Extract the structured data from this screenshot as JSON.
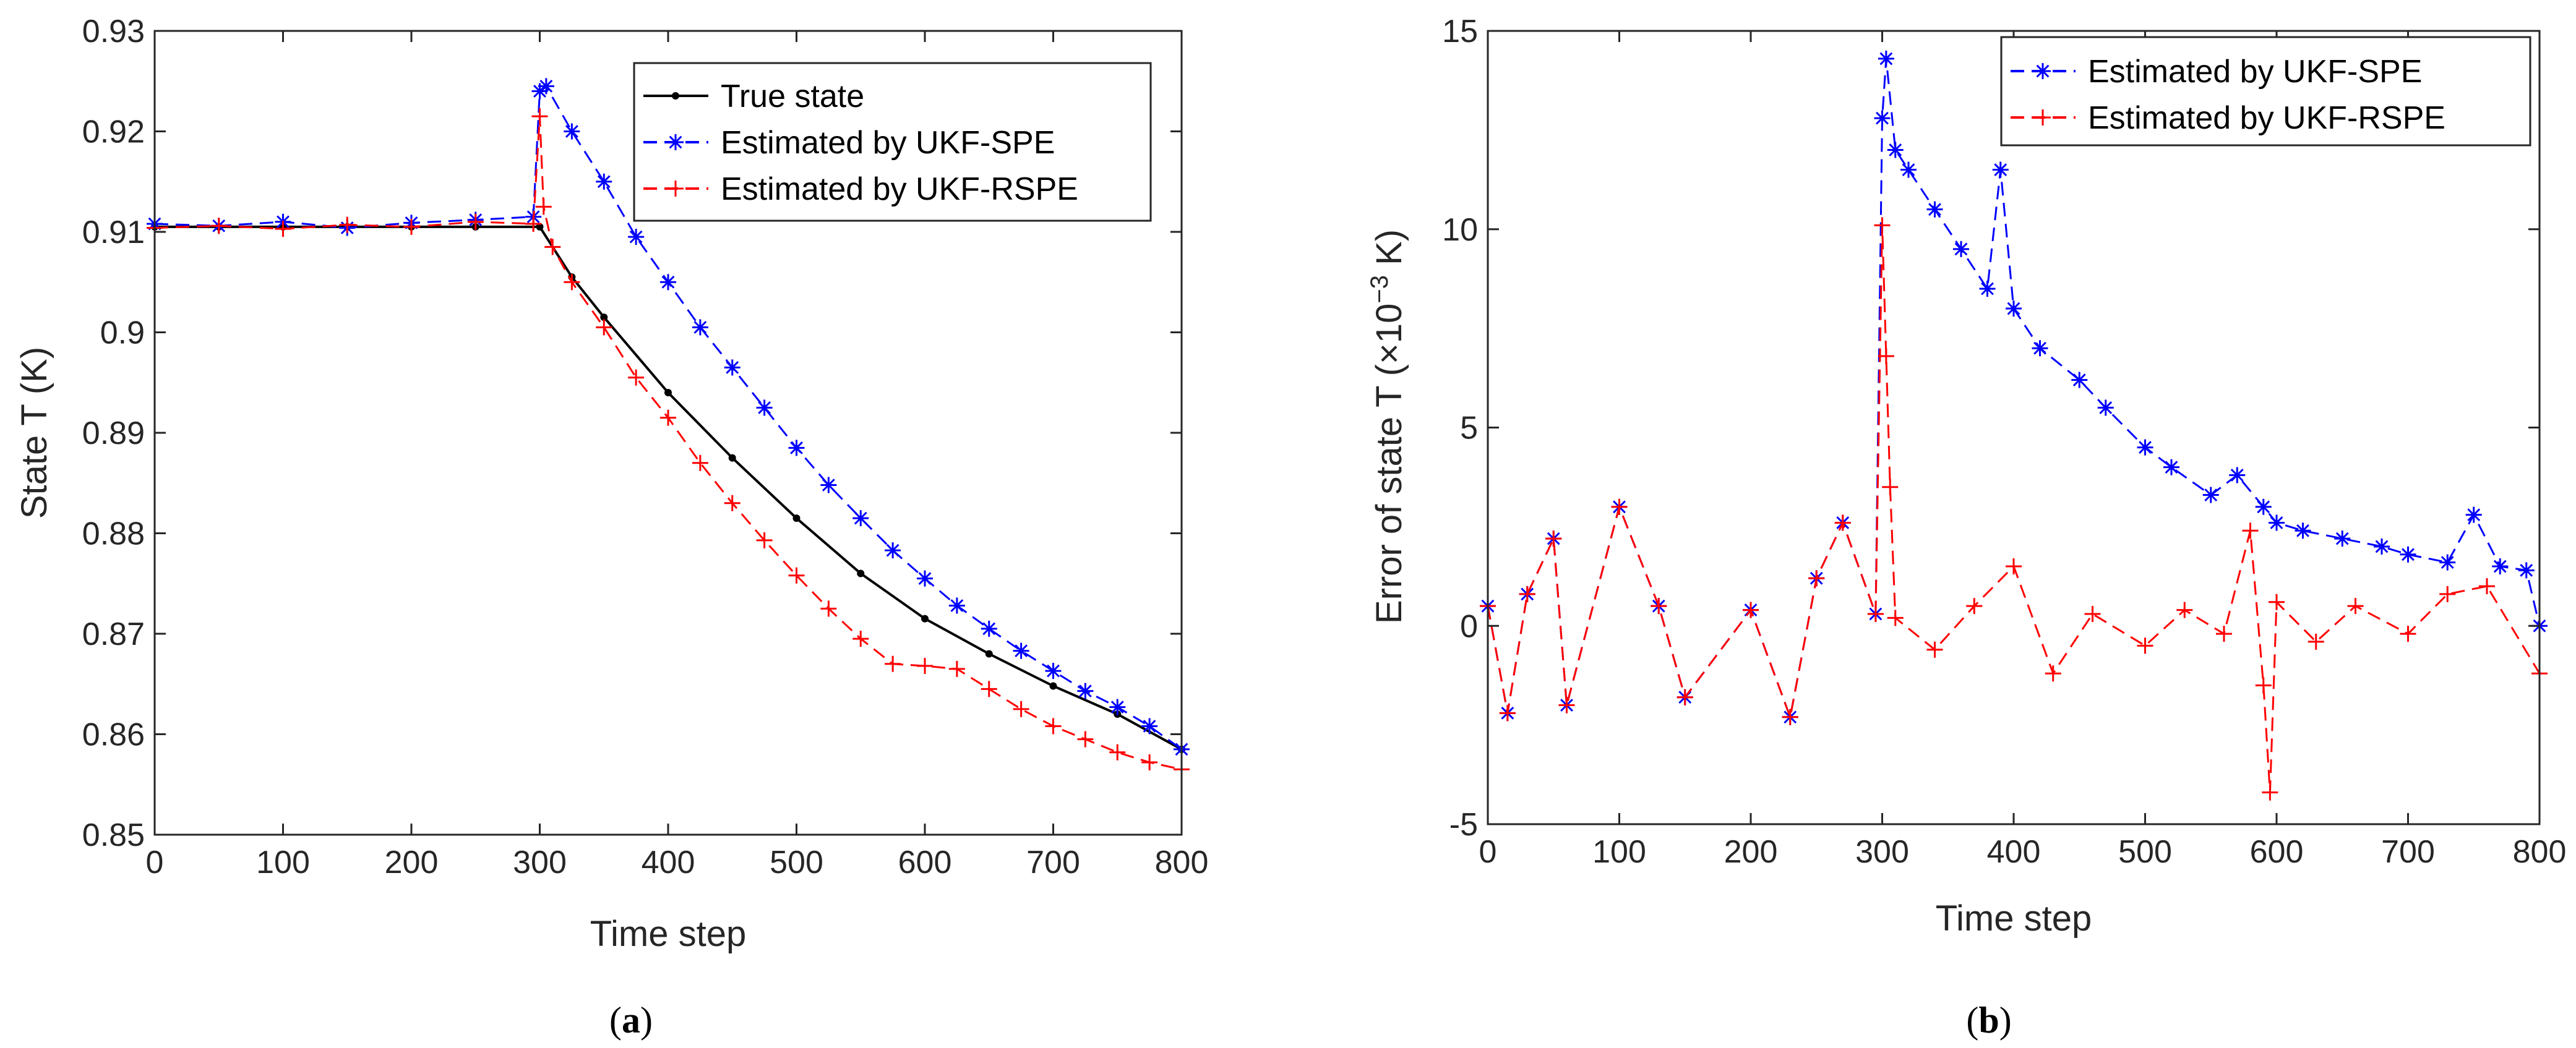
{
  "chart_data": [
    {
      "panel": "a",
      "type": "scatter",
      "xlabel": "Time step",
      "ylabel": "State T (K)",
      "xlim": [
        0,
        800
      ],
      "ylim": [
        0.85,
        0.93
      ],
      "xticks": [
        0,
        100,
        200,
        300,
        400,
        500,
        600,
        700,
        800
      ],
      "xtick_labels": [
        "0",
        "100",
        "200",
        "300",
        "400",
        "500",
        "600",
        "700",
        "800"
      ],
      "yticks": [
        0.85,
        0.86,
        0.87,
        0.88,
        0.89,
        0.9,
        0.91,
        0.92,
        0.93
      ],
      "ytick_labels": [
        "0.85",
        "0.86",
        "0.87",
        "0.88",
        "0.89",
        "0.9",
        "0.91",
        "0.92",
        "0.93"
      ],
      "legend_position": "top-right",
      "series": [
        {
          "name": "True state",
          "color": "#000000",
          "marker": "dot",
          "line": "solid",
          "x": [
            0,
            50,
            100,
            150,
            200,
            250,
            300,
            325,
            350,
            400,
            450,
            500,
            550,
            600,
            650,
            700,
            750,
            800
          ],
          "y": [
            0.9105,
            0.9105,
            0.9105,
            0.9105,
            0.9105,
            0.9105,
            0.9105,
            0.9055,
            0.9015,
            0.894,
            0.8875,
            0.8815,
            0.876,
            0.8715,
            0.868,
            0.8648,
            0.862,
            0.8585
          ]
        },
        {
          "name": "Estimated by UKF-SPE",
          "color": "#0000ff",
          "marker": "asterisk",
          "line": "dashed",
          "x": [
            0,
            50,
            100,
            150,
            200,
            250,
            295,
            300,
            305,
            325,
            350,
            375,
            400,
            425,
            450,
            475,
            500,
            525,
            550,
            575,
            600,
            625,
            650,
            675,
            700,
            725,
            750,
            775,
            800
          ],
          "y": [
            0.9108,
            0.9106,
            0.911,
            0.9104,
            0.9109,
            0.9112,
            0.9115,
            0.924,
            0.9245,
            0.92,
            0.915,
            0.9095,
            0.905,
            0.9005,
            0.8965,
            0.8925,
            0.8885,
            0.8848,
            0.8815,
            0.8783,
            0.8755,
            0.8728,
            0.8705,
            0.8683,
            0.8663,
            0.8643,
            0.8627,
            0.8608,
            0.8585
          ]
        },
        {
          "name": "Estimated by UKF-RSPE",
          "color": "#ff0000",
          "marker": "plus",
          "line": "dashed",
          "x": [
            0,
            50,
            100,
            150,
            200,
            250,
            295,
            300,
            303,
            310,
            325,
            350,
            375,
            400,
            425,
            450,
            475,
            500,
            525,
            550,
            575,
            600,
            625,
            650,
            675,
            700,
            725,
            750,
            775,
            800
          ],
          "y": [
            0.9104,
            0.9106,
            0.9103,
            0.9107,
            0.9105,
            0.911,
            0.9108,
            0.9215,
            0.9125,
            0.9085,
            0.905,
            0.9005,
            0.8955,
            0.8915,
            0.887,
            0.883,
            0.8793,
            0.8758,
            0.8725,
            0.8695,
            0.867,
            0.8668,
            0.8665,
            0.8645,
            0.8625,
            0.8608,
            0.8595,
            0.8582,
            0.8572,
            0.8565
          ]
        }
      ]
    },
    {
      "panel": "b",
      "type": "scatter",
      "xlabel": "Time step",
      "ylabel": "Error of state T (×10",
      "ylabel_exp": "−3",
      "ylabel_unit": " K)",
      "xlim": [
        0,
        800
      ],
      "ylim": [
        -5,
        15
      ],
      "xticks": [
        0,
        100,
        200,
        300,
        400,
        500,
        600,
        700,
        800
      ],
      "xtick_labels": [
        "0",
        "100",
        "200",
        "300",
        "400",
        "500",
        "600",
        "700",
        "800"
      ],
      "yticks": [
        -5,
        0,
        5,
        10,
        15
      ],
      "ytick_labels": [
        "-5",
        "0",
        "5",
        "10",
        "15"
      ],
      "legend_position": "top-right",
      "series": [
        {
          "name": "Estimated by UKF-SPE",
          "color": "#0000ff",
          "marker": "asterisk",
          "line": "dashed",
          "x": [
            0,
            15,
            30,
            50,
            60,
            100,
            130,
            150,
            200,
            230,
            250,
            270,
            295,
            300,
            303,
            310,
            320,
            340,
            360,
            380,
            390,
            400,
            420,
            450,
            470,
            500,
            520,
            550,
            570,
            590,
            600,
            620,
            650,
            680,
            700,
            730,
            750,
            770,
            790,
            800
          ],
          "y": [
            0.5,
            -2.2,
            0.8,
            2.2,
            -2,
            3,
            0.5,
            -1.8,
            0.4,
            -2.3,
            1.2,
            2.6,
            0.3,
            12.8,
            14.3,
            12,
            11.5,
            10.5,
            9.5,
            8.5,
            11.5,
            8,
            7,
            6.2,
            5.5,
            4.5,
            4,
            3.3,
            3.8,
            3,
            2.6,
            2.4,
            2.2,
            2.0,
            1.8,
            1.6,
            2.8,
            1.5,
            1.4,
            0
          ]
        },
        {
          "name": "Estimated by UKF-RSPE",
          "color": "#ff0000",
          "marker": "plus",
          "line": "dashed",
          "x": [
            0,
            15,
            30,
            50,
            60,
            100,
            130,
            150,
            200,
            230,
            250,
            270,
            295,
            300,
            303,
            306,
            310,
            340,
            370,
            400,
            430,
            460,
            500,
            530,
            560,
            580,
            590,
            595,
            600,
            630,
            660,
            700,
            730,
            760,
            800
          ],
          "y": [
            0.5,
            -2.2,
            0.8,
            2.2,
            -2,
            3,
            0.5,
            -1.8,
            0.4,
            -2.3,
            1.2,
            2.6,
            0.3,
            10.1,
            6.8,
            3.5,
            0.2,
            -0.6,
            0.5,
            1.5,
            -1.2,
            0.3,
            -0.5,
            0.4,
            -0.2,
            2.4,
            -1.5,
            -4.2,
            0.6,
            -0.4,
            0.5,
            -0.2,
            0.8,
            1.0,
            -1.2
          ]
        }
      ]
    }
  ],
  "panel_labels": {
    "a": {
      "open": "(",
      "letter": "a",
      "close": ")"
    },
    "b": {
      "open": "(",
      "letter": "b",
      "close": ")"
    }
  }
}
